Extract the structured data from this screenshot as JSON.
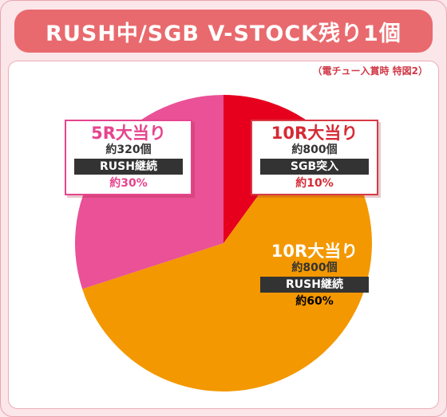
{
  "title": "RUSH中/SGB V-STOCK残り1個",
  "note": "（電チュー入賞時 特図2）",
  "colors": {
    "slice_10r_sgb": "#e6001e",
    "slice_10r_rush": "#f39800",
    "slice_5r_rush": "#ea5197",
    "label_red": "#d62a35",
    "label_orange": "#e07800",
    "label_pink": "#e6448d"
  },
  "chart_data": {
    "type": "pie",
    "slices": [
      {
        "key": "10r_sgb",
        "title": "10R大当り",
        "count": "約800個",
        "route": "SGB突入",
        "pct_label": "約10%",
        "value": 10
      },
      {
        "key": "10r_rush",
        "title": "10R大当り",
        "count": "約800個",
        "route": "RUSH継続",
        "pct_label": "約60%",
        "value": 60
      },
      {
        "key": "5r_rush",
        "title": "5R大当り",
        "count": "約320個",
        "route": "RUSH継続",
        "pct_label": "約30%",
        "value": 30
      }
    ]
  }
}
